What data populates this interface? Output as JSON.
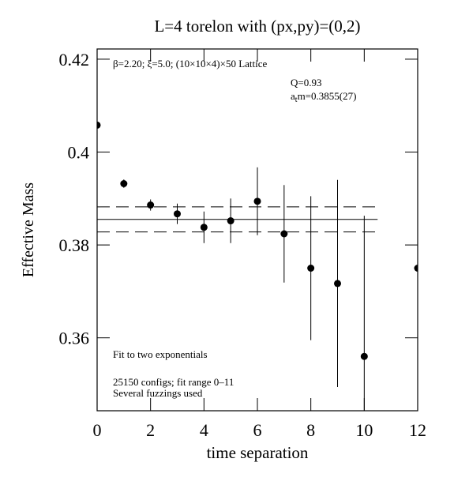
{
  "chart_data": {
    "type": "scatter",
    "title": "L=4 torelon with (px,py)=(0,2)",
    "xlabel": "time separation",
    "ylabel": "Effective Mass",
    "x": [
      0,
      1,
      2,
      3,
      4,
      5,
      6,
      7,
      8,
      9,
      10,
      12
    ],
    "values": [
      0.4058,
      0.3932,
      0.3886,
      0.3867,
      0.3838,
      0.3852,
      0.3894,
      0.3824,
      0.375,
      0.3717,
      0.356,
      0.375
    ],
    "errors": [
      0.0005,
      0.0009,
      0.0012,
      0.0022,
      0.0034,
      0.0048,
      0.0073,
      0.0105,
      0.0155,
      0.0223,
      0.0303,
      0
    ],
    "color": "#000000",
    "fit": {
      "value": 0.3855,
      "error": 0.0027,
      "xlim": [
        0,
        10.5
      ]
    },
    "xlim": [
      0,
      12
    ],
    "xticks": [
      0,
      2,
      4,
      6,
      8,
      10,
      12
    ],
    "ylim": [
      0.3443,
      0.4222
    ],
    "yticks": [
      0.36,
      0.38,
      0.4,
      0.42
    ],
    "annotations": {
      "lattice": "β=2.20; ξ=5.0; (10×10×4)×50 Lattice",
      "q": "Q=0.93",
      "mass": {
        "base": "a",
        "sub": "t",
        "rest": "m=0.3855(27)"
      },
      "fit_note": "Fit to two exponentials",
      "configs": "25150 configs; fit range 0–11",
      "fuzzing": "Several fuzzings used"
    }
  }
}
